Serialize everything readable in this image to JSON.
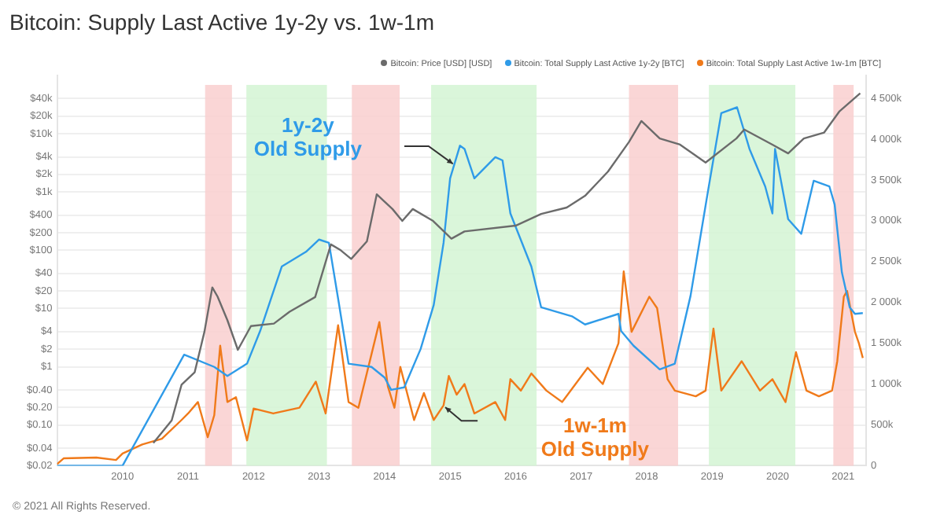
{
  "chart_data": {
    "type": "line",
    "title": "Bitcoin: Supply Last Active 1y-2y vs. 1w-1m",
    "xlim": [
      2009.0,
      2021.35
    ],
    "xticks": [
      2010,
      2011,
      2012,
      2013,
      2014,
      2015,
      2016,
      2017,
      2018,
      2019,
      2020,
      2021
    ],
    "ylim": [
      0.02,
      100000
    ],
    "log": "y",
    "yticks": [
      {
        "value": 0.02,
        "label": "$0.02"
      },
      {
        "value": 0.04,
        "label": "$0.04"
      },
      {
        "value": 0.1,
        "label": "$0.10"
      },
      {
        "value": 0.2,
        "label": "$0.20"
      },
      {
        "value": 0.4,
        "label": "$0.40"
      },
      {
        "value": 1,
        "label": "$1"
      },
      {
        "value": 2,
        "label": "$2"
      },
      {
        "value": 4,
        "label": "$4"
      },
      {
        "value": 10,
        "label": "$10"
      },
      {
        "value": 20,
        "label": "$20"
      },
      {
        "value": 40,
        "label": "$40"
      },
      {
        "value": 100,
        "label": "$100"
      },
      {
        "value": 200,
        "label": "$200"
      },
      {
        "value": 400,
        "label": "$400"
      },
      {
        "value": 1000,
        "label": "$1k"
      },
      {
        "value": 2000,
        "label": "$2k"
      },
      {
        "value": 4000,
        "label": "$4k"
      },
      {
        "value": 10000,
        "label": "$10k"
      },
      {
        "value": 20000,
        "label": "$20k"
      },
      {
        "value": 40000,
        "label": "$40k"
      }
    ],
    "y2lim": [
      0,
      4780000
    ],
    "y2ticks": [
      0,
      {
        "value": 500000,
        "label": "500k"
      },
      {
        "value": 1000000,
        "label": "1 000k"
      },
      {
        "value": 1500000,
        "label": "1 500k"
      },
      {
        "value": 2000000,
        "label": "2 000k"
      },
      {
        "value": 2500000,
        "label": "2 500k"
      },
      {
        "value": 3000000,
        "label": "3 000k"
      },
      {
        "value": 3500000,
        "label": "3 500k"
      },
      {
        "value": 4000000,
        "label": "4 000k"
      },
      {
        "value": 4500000,
        "label": "4 500k"
      }
    ],
    "grid": "y",
    "legend": "top right",
    "bands": [
      {
        "axis": "x",
        "from": 2011.26,
        "to": 2011.67,
        "color": "#f9cfcf"
      },
      {
        "axis": "x",
        "from": 2011.89,
        "to": 2013.12,
        "color": "#d4f5d4"
      },
      {
        "axis": "x",
        "from": 2013.5,
        "to": 2014.23,
        "color": "#f9cfcf"
      },
      {
        "axis": "x",
        "from": 2014.71,
        "to": 2016.32,
        "color": "#d4f5d4"
      },
      {
        "axis": "x",
        "from": 2017.73,
        "to": 2018.48,
        "color": "#f9cfcf"
      },
      {
        "axis": "x",
        "from": 2018.95,
        "to": 2020.27,
        "color": "#d4f5d4"
      },
      {
        "axis": "x",
        "from": 2020.85,
        "to": 2021.16,
        "color": "#f9cfcf"
      }
    ],
    "series": [
      {
        "name": "Bitcoin: Price [USD] [USD]",
        "color": "#6b6b6b",
        "axis": "y",
        "x": [
          2010.47,
          2010.75,
          2010.9,
          2011.1,
          2011.25,
          2011.37,
          2011.45,
          2011.6,
          2011.76,
          2011.96,
          2012.31,
          2012.55,
          2012.94,
          2013.18,
          2013.33,
          2013.49,
          2013.73,
          2013.88,
          2014.12,
          2014.27,
          2014.43,
          2014.74,
          2015.02,
          2015.22,
          2016.0,
          2016.39,
          2016.78,
          2017.06,
          2017.41,
          2017.73,
          2017.92,
          2018.2,
          2018.51,
          2018.9,
          2019.37,
          2019.49,
          2019.92,
          2020.16,
          2020.4,
          2020.71,
          2020.94,
          2021.26
        ],
        "values": [
          0.049,
          0.12,
          0.49,
          0.8,
          4,
          23,
          16,
          6.3,
          1.95,
          5,
          5.5,
          8.8,
          15.7,
          126,
          100,
          71,
          142,
          910,
          510,
          318,
          510,
          318,
          158,
          210,
          264,
          420,
          540,
          860,
          2240,
          7200,
          16500,
          8300,
          6500,
          3200,
          8300,
          11800,
          6500,
          4600,
          8300,
          10500,
          24000,
          49500
        ]
      },
      {
        "name": "Bitcoin: Total Supply Last Active 1y-2y [BTC]",
        "color": "#2f9be8",
        "axis": "y2",
        "x": [
          2009.0,
          2010.0,
          2010.94,
          2011.4,
          2011.6,
          2011.9,
          2012.1,
          2012.43,
          2012.8,
          2013.0,
          2013.15,
          2013.3,
          2013.45,
          2013.8,
          2014.0,
          2014.1,
          2014.3,
          2014.55,
          2014.75,
          2014.9,
          2015.0,
          2015.15,
          2015.22,
          2015.37,
          2015.69,
          2015.8,
          2015.92,
          2016.24,
          2016.39,
          2016.86,
          2017.06,
          2017.57,
          2017.61,
          2017.8,
          2018.2,
          2018.43,
          2018.67,
          2018.94,
          2019.14,
          2019.38,
          2019.57,
          2019.81,
          2019.92,
          2019.96,
          2020.16,
          2020.36,
          2020.55,
          2020.79,
          2020.87,
          2020.98,
          2021.1,
          2021.18,
          2021.3
        ],
        "values": [
          0,
          0,
          1360000,
          1210000,
          1100000,
          1250000,
          1650000,
          2440000,
          2620000,
          2770000,
          2730000,
          2000000,
          1250000,
          1210000,
          1080000,
          930000,
          960000,
          1430000,
          1970000,
          2730000,
          3520000,
          3920000,
          3880000,
          3520000,
          3780000,
          3740000,
          3090000,
          2440000,
          1940000,
          1830000,
          1730000,
          1860000,
          1650000,
          1470000,
          1180000,
          1250000,
          2080000,
          3380000,
          4320000,
          4390000,
          3880000,
          3420000,
          3090000,
          3880000,
          3020000,
          2840000,
          3490000,
          3420000,
          3200000,
          2370000,
          1940000,
          1860000,
          1870000
        ]
      },
      {
        "name": "Bitcoin: Total Supply Last Active 1w-1m [BTC]",
        "color": "#f07a1a",
        "axis": "y2",
        "x": [
          2009.0,
          2009.1,
          2009.6,
          2009.9,
          2010.0,
          2010.3,
          2010.6,
          2010.9,
          2011.0,
          2011.15,
          2011.3,
          2011.4,
          2011.49,
          2011.6,
          2011.73,
          2011.9,
          2012.0,
          2012.3,
          2012.7,
          2012.95,
          2013.1,
          2013.29,
          2013.45,
          2013.6,
          2013.92,
          2014.05,
          2014.15,
          2014.24,
          2014.45,
          2014.6,
          2014.75,
          2014.9,
          2014.98,
          2015.1,
          2015.22,
          2015.37,
          2015.69,
          2015.84,
          2015.92,
          2016.08,
          2016.24,
          2016.47,
          2016.71,
          2017.1,
          2017.33,
          2017.57,
          2017.65,
          2017.77,
          2018.04,
          2018.16,
          2018.32,
          2018.43,
          2018.75,
          2018.9,
          2019.02,
          2019.14,
          2019.45,
          2019.73,
          2019.92,
          2020.12,
          2020.28,
          2020.44,
          2020.63,
          2020.83,
          2020.91,
          2021.01,
          2021.06,
          2021.18,
          2021.24,
          2021.3
        ],
        "values": [
          20000,
          90000,
          100000,
          70000,
          150000,
          260000,
          330000,
          560000,
          640000,
          780000,
          350000,
          620000,
          1470000,
          780000,
          840000,
          310000,
          700000,
          640000,
          710000,
          1030000,
          640000,
          1720000,
          780000,
          710000,
          1760000,
          970000,
          710000,
          1210000,
          560000,
          890000,
          560000,
          740000,
          1100000,
          870000,
          1000000,
          640000,
          780000,
          560000,
          1060000,
          920000,
          1130000,
          920000,
          780000,
          1200000,
          1000000,
          1500000,
          2380000,
          1640000,
          2070000,
          1930000,
          1060000,
          920000,
          850000,
          920000,
          1680000,
          920000,
          1280000,
          920000,
          1060000,
          780000,
          1390000,
          920000,
          850000,
          920000,
          1280000,
          2070000,
          2140000,
          1640000,
          1500000,
          1320000
        ]
      }
    ],
    "annotations": [
      "1y-2y Old Supply",
      "1w-1m Old Supply",
      "© 2021 All Rights Reserved."
    ]
  }
}
